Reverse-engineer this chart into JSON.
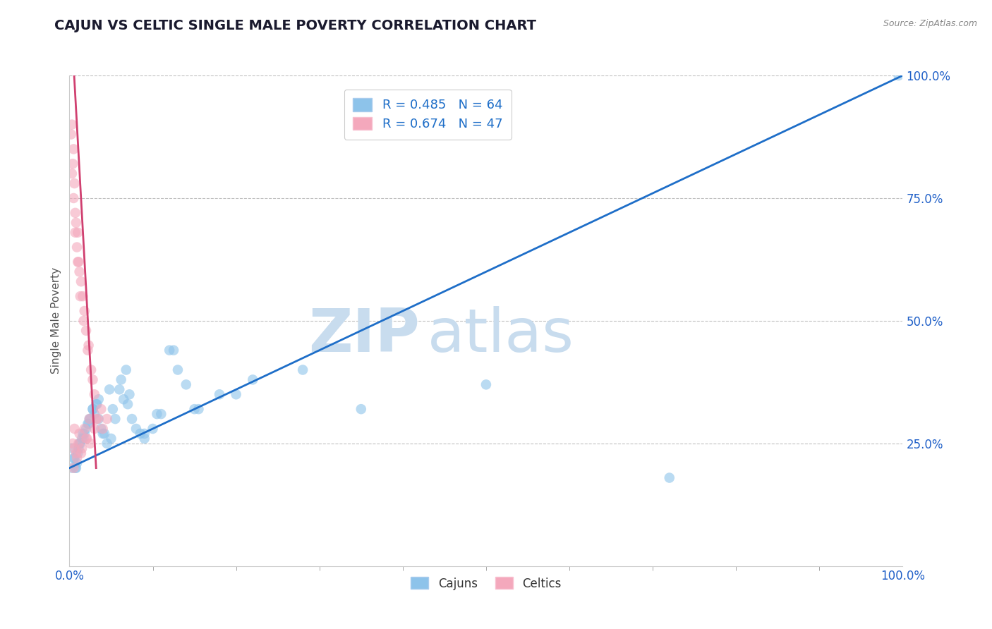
{
  "title": "CAJUN VS CELTIC SINGLE MALE POVERTY CORRELATION CHART",
  "source": "Source: ZipAtlas.com",
  "ylabel": "Single Male Poverty",
  "watermark_part1": "ZIP",
  "watermark_part2": "atlas",
  "legend_cajuns": "Cajuns",
  "legend_celtics": "Celtics",
  "r_cajuns": 0.485,
  "n_cajuns": 64,
  "r_celtics": 0.674,
  "n_celtics": 47,
  "color_cajuns": "#8DC3EA",
  "color_celtics": "#F4A8BC",
  "line_color_cajuns": "#1E6EC8",
  "line_color_celtics": "#D04070",
  "blue_line": [
    [
      0,
      20
    ],
    [
      100,
      100
    ]
  ],
  "pink_line": [
    [
      0.5,
      102
    ],
    [
      3.2,
      20
    ]
  ],
  "cajuns_x": [
    0.5,
    0.8,
    1.0,
    1.2,
    1.5,
    1.8,
    2.0,
    2.2,
    2.5,
    2.8,
    3.0,
    3.2,
    3.5,
    3.8,
    4.0,
    4.5,
    5.0,
    5.5,
    6.0,
    6.5,
    7.0,
    7.5,
    8.0,
    9.0,
    10.0,
    11.0,
    12.0,
    13.0,
    14.0,
    15.0,
    0.3,
    0.6,
    0.9,
    1.3,
    1.6,
    2.3,
    2.8,
    3.3,
    4.2,
    5.2,
    6.2,
    7.2,
    8.5,
    10.5,
    12.5,
    15.5,
    18.0,
    22.0,
    28.0,
    35.0,
    0.4,
    0.7,
    1.1,
    1.7,
    2.4,
    3.5,
    4.8,
    6.8,
    9.0,
    20.0,
    30.0,
    50.0,
    72.0,
    99.5
  ],
  "cajuns_y": [
    22.0,
    20.0,
    23.0,
    25.0,
    26.0,
    27.0,
    28.0,
    29.0,
    30.0,
    32.0,
    31.0,
    33.0,
    30.0,
    28.0,
    27.0,
    25.0,
    26.0,
    30.0,
    36.0,
    34.0,
    33.0,
    30.0,
    28.0,
    26.0,
    28.0,
    31.0,
    44.0,
    40.0,
    37.0,
    32.0,
    20.0,
    22.0,
    21.0,
    25.0,
    27.0,
    29.0,
    32.0,
    33.0,
    27.0,
    32.0,
    38.0,
    35.0,
    27.0,
    31.0,
    44.0,
    32.0,
    35.0,
    38.0,
    40.0,
    32.0,
    24.0,
    20.0,
    24.0,
    26.0,
    30.0,
    34.0,
    36.0,
    40.0,
    27.0,
    35.0,
    45.0,
    37.0,
    18.0,
    100.0
  ],
  "celtics_x": [
    0.2,
    0.3,
    0.4,
    0.5,
    0.6,
    0.7,
    0.8,
    0.9,
    1.0,
    1.1,
    1.2,
    1.4,
    1.6,
    1.8,
    2.0,
    2.3,
    2.6,
    3.0,
    3.4,
    4.0,
    0.3,
    0.5,
    0.7,
    1.0,
    1.3,
    1.7,
    2.2,
    2.8,
    0.4,
    0.6,
    0.8,
    1.1,
    1.5,
    2.0,
    2.5,
    3.2,
    0.5,
    0.9,
    1.4,
    2.1,
    0.6,
    1.2,
    1.8,
    2.4,
    3.0,
    3.8,
    4.5
  ],
  "celtics_y": [
    88.0,
    90.0,
    82.0,
    85.0,
    78.0,
    72.0,
    70.0,
    65.0,
    68.0,
    62.0,
    60.0,
    58.0,
    55.0,
    52.0,
    48.0,
    45.0,
    40.0,
    35.0,
    30.0,
    28.0,
    80.0,
    75.0,
    68.0,
    62.0,
    55.0,
    50.0,
    44.0,
    38.0,
    25.0,
    24.0,
    23.0,
    25.0,
    24.0,
    26.0,
    25.0,
    30.0,
    20.0,
    22.0,
    23.0,
    26.0,
    28.0,
    27.0,
    28.0,
    30.0,
    28.0,
    32.0,
    30.0
  ],
  "xlim": [
    0,
    100
  ],
  "ylim": [
    0,
    100
  ],
  "x_ticks": [
    0,
    100
  ],
  "x_tick_labels": [
    "0.0%",
    "100.0%"
  ],
  "y_tick_positions": [
    25,
    50,
    75,
    100
  ],
  "y_tick_labels": [
    "25.0%",
    "50.0%",
    "75.0%",
    "100.0%"
  ],
  "background_color": "#FFFFFF",
  "title_color": "#1a1a2e",
  "title_fontsize": 14,
  "axis_label_color": "#555555",
  "tick_label_color": "#2060C8",
  "source_color": "#888888",
  "watermark_color_zip": "#C8DCEE",
  "watermark_color_atlas": "#C8DCEE",
  "figsize": [
    14.06,
    8.92
  ],
  "dpi": 100
}
